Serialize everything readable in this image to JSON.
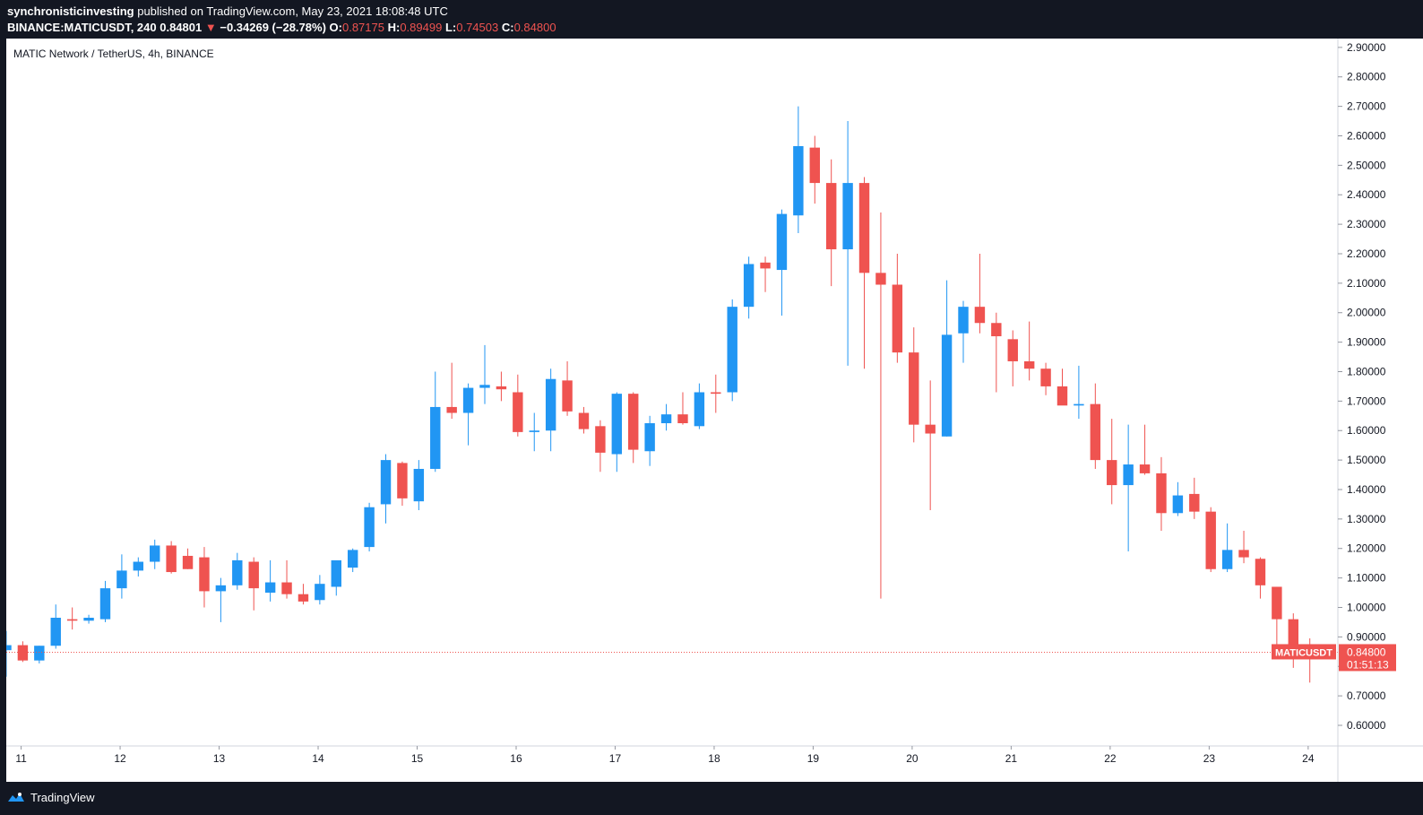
{
  "header": {
    "author": "synchronisticinvesting",
    "published_text": "published on TradingView.com, May 23, 2021 18:08:48 UTC",
    "symbol_line": "BINANCE:MATICUSDT, 240",
    "last": "0.84801",
    "change": "−0.34269 (−28.78%)",
    "o_label": "O:",
    "o": "0.87175",
    "h_label": "H:",
    "h": "0.89499",
    "l_label": "L:",
    "l": "0.74503",
    "c_label": "C:",
    "c": "0.84800"
  },
  "footer": {
    "brand": "TradingView",
    "logo_icon": "tradingview-logo-icon"
  },
  "colors": {
    "up": "#2196f3",
    "down": "#ef5350",
    "bg": "#ffffff",
    "frame": "#131722",
    "axis_text": "#131722"
  },
  "chart_data": {
    "type": "candlestick",
    "title": "MATIC Network / TetherUS, 4h, BINANCE",
    "price_badge": {
      "symbol": "MATICUSDT",
      "price": "0.84800",
      "countdown": "01:51:13"
    },
    "ylim": [
      0.53,
      2.93
    ],
    "y_ticks": [
      0.6,
      0.7,
      0.8,
      0.9,
      1.0,
      1.1,
      1.2,
      1.3,
      1.4,
      1.5,
      1.6,
      1.7,
      1.8,
      1.9,
      2.0,
      2.1,
      2.2,
      2.3,
      2.4,
      2.5,
      2.6,
      2.7,
      2.8,
      2.9
    ],
    "x_ticks": [
      "11",
      "12",
      "13",
      "14",
      "15",
      "16",
      "17",
      "18",
      "19",
      "20",
      "21",
      "22",
      "23",
      "24"
    ],
    "x_start_day": 10.85,
    "bar_hours": 4,
    "candles": [
      [
        0.855,
        0.92,
        0.765,
        0.872
      ],
      [
        0.872,
        0.885,
        0.815,
        0.82
      ],
      [
        0.82,
        0.87,
        0.81,
        0.87
      ],
      [
        0.87,
        1.01,
        0.86,
        0.965
      ],
      [
        0.96,
        1.0,
        0.925,
        0.955
      ],
      [
        0.955,
        0.975,
        0.945,
        0.965
      ],
      [
        0.96,
        1.09,
        0.95,
        1.065
      ],
      [
        1.065,
        1.18,
        1.03,
        1.125
      ],
      [
        1.125,
        1.17,
        1.105,
        1.155
      ],
      [
        1.155,
        1.23,
        1.13,
        1.21
      ],
      [
        1.21,
        1.225,
        1.115,
        1.12
      ],
      [
        1.175,
        1.2,
        1.13,
        1.13
      ],
      [
        1.17,
        1.205,
        1.0,
        1.055
      ],
      [
        1.055,
        1.1,
        0.95,
        1.075
      ],
      [
        1.075,
        1.185,
        1.06,
        1.16
      ],
      [
        1.155,
        1.17,
        0.99,
        1.065
      ],
      [
        1.05,
        1.16,
        1.02,
        1.085
      ],
      [
        1.085,
        1.16,
        1.03,
        1.045
      ],
      [
        1.045,
        1.08,
        1.01,
        1.02
      ],
      [
        1.025,
        1.11,
        1.01,
        1.08
      ],
      [
        1.07,
        1.15,
        1.04,
        1.16
      ],
      [
        1.135,
        1.2,
        1.12,
        1.195
      ],
      [
        1.205,
        1.355,
        1.19,
        1.34
      ],
      [
        1.35,
        1.52,
        1.285,
        1.5
      ],
      [
        1.49,
        1.495,
        1.345,
        1.37
      ],
      [
        1.36,
        1.5,
        1.33,
        1.47
      ],
      [
        1.47,
        1.8,
        1.46,
        1.68
      ],
      [
        1.68,
        1.83,
        1.64,
        1.66
      ],
      [
        1.66,
        1.76,
        1.55,
        1.745
      ],
      [
        1.745,
        1.89,
        1.69,
        1.755
      ],
      [
        1.75,
        1.8,
        1.7,
        1.74
      ],
      [
        1.73,
        1.79,
        1.58,
        1.595
      ],
      [
        1.595,
        1.66,
        1.53,
        1.6
      ],
      [
        1.6,
        1.81,
        1.53,
        1.775
      ],
      [
        1.77,
        1.835,
        1.65,
        1.665
      ],
      [
        1.66,
        1.68,
        1.59,
        1.605
      ],
      [
        1.615,
        1.635,
        1.46,
        1.525
      ],
      [
        1.52,
        1.73,
        1.46,
        1.725
      ],
      [
        1.725,
        1.73,
        1.49,
        1.535
      ],
      [
        1.53,
        1.65,
        1.48,
        1.625
      ],
      [
        1.625,
        1.69,
        1.6,
        1.655
      ],
      [
        1.655,
        1.73,
        1.62,
        1.625
      ],
      [
        1.615,
        1.76,
        1.605,
        1.73
      ],
      [
        1.73,
        1.79,
        1.66,
        1.725
      ],
      [
        1.73,
        2.045,
        1.7,
        2.02
      ],
      [
        2.02,
        2.19,
        1.98,
        2.165
      ],
      [
        2.17,
        2.19,
        2.07,
        2.15
      ],
      [
        2.145,
        2.35,
        1.99,
        2.335
      ],
      [
        2.33,
        2.7,
        2.27,
        2.565
      ],
      [
        2.56,
        2.6,
        2.37,
        2.44
      ],
      [
        2.44,
        2.52,
        2.09,
        2.215
      ],
      [
        2.215,
        2.65,
        1.82,
        2.44
      ],
      [
        2.44,
        2.46,
        1.81,
        2.135
      ],
      [
        2.135,
        2.34,
        1.03,
        2.095
      ],
      [
        2.095,
        2.2,
        1.83,
        1.865
      ],
      [
        1.865,
        1.95,
        1.56,
        1.62
      ],
      [
        1.62,
        1.77,
        1.33,
        1.59
      ],
      [
        1.58,
        2.11,
        1.58,
        1.925
      ],
      [
        1.93,
        2.04,
        1.83,
        2.02
      ],
      [
        2.02,
        2.2,
        1.93,
        1.965
      ],
      [
        1.965,
        2.0,
        1.73,
        1.92
      ],
      [
        1.91,
        1.94,
        1.75,
        1.835
      ],
      [
        1.835,
        1.97,
        1.77,
        1.81
      ],
      [
        1.81,
        1.83,
        1.72,
        1.75
      ],
      [
        1.75,
        1.81,
        1.69,
        1.685
      ],
      [
        1.685,
        1.82,
        1.64,
        1.69
      ],
      [
        1.69,
        1.76,
        1.47,
        1.5
      ],
      [
        1.5,
        1.64,
        1.35,
        1.415
      ],
      [
        1.415,
        1.62,
        1.19,
        1.485
      ],
      [
        1.485,
        1.62,
        1.45,
        1.455
      ],
      [
        1.455,
        1.51,
        1.26,
        1.32
      ],
      [
        1.32,
        1.425,
        1.31,
        1.38
      ],
      [
        1.385,
        1.44,
        1.3,
        1.325
      ],
      [
        1.325,
        1.34,
        1.12,
        1.13
      ],
      [
        1.13,
        1.285,
        1.12,
        1.195
      ],
      [
        1.195,
        1.26,
        1.15,
        1.17
      ],
      [
        1.165,
        1.17,
        1.03,
        1.075
      ],
      [
        1.07,
        1.07,
        0.875,
        0.96
      ],
      [
        0.96,
        0.98,
        0.795,
        0.855
      ],
      [
        0.872,
        0.895,
        0.745,
        0.848
      ]
    ]
  }
}
